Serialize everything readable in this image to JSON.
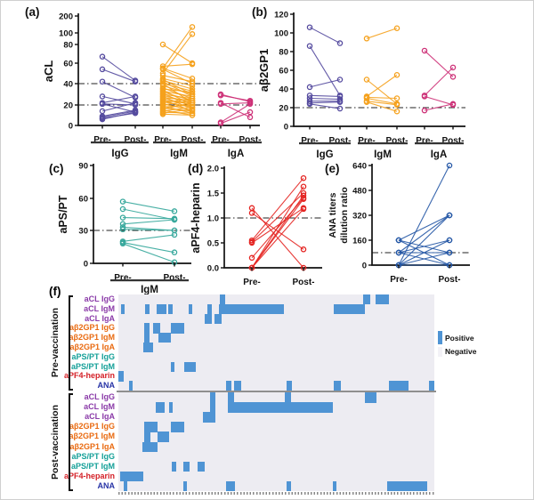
{
  "figure": {
    "type": "scientific-multipanel-figure",
    "background": "#ffffff"
  },
  "chart_data": [
    {
      "id": "a",
      "type": "paired-line",
      "panel_label": "(a)",
      "ylabel": "aCL",
      "ytick_values": [
        0,
        20,
        40,
        60,
        80,
        100,
        200
      ],
      "ytick_labels": [
        "0",
        "20",
        "40",
        "60",
        "80",
        "100",
        "200"
      ],
      "axis_break": true,
      "reference_lines": [
        20,
        40
      ],
      "x_categories": [
        "Pre-",
        "Post-"
      ],
      "groups": [
        {
          "name": "IgG",
          "color": "#544a9e",
          "pairs": [
            [
              67,
              43
            ],
            [
              54,
              42
            ],
            [
              42,
              27
            ],
            [
              28,
              21
            ],
            [
              22,
              28
            ],
            [
              21,
              20
            ],
            [
              21,
              13
            ],
            [
              14,
              22
            ],
            [
              9,
              15
            ],
            [
              8,
              14
            ],
            [
              7,
              12
            ],
            [
              6,
              13
            ]
          ]
        },
        {
          "name": "IgM",
          "color": "#f5a11c",
          "pairs": [
            [
              80,
              60
            ],
            [
              57,
              59
            ],
            [
              55,
              135
            ],
            [
              50,
              98
            ],
            [
              55,
              45
            ],
            [
              54,
              40
            ],
            [
              48,
              42
            ],
            [
              45,
              38
            ],
            [
              44,
              30
            ],
            [
              43,
              35
            ],
            [
              42,
              28
            ],
            [
              40,
              33
            ],
            [
              40,
              22
            ],
            [
              38,
              30
            ],
            [
              36,
              26
            ],
            [
              35,
              32
            ],
            [
              34,
              20
            ],
            [
              33,
              28
            ],
            [
              32,
              24
            ],
            [
              31,
              18
            ],
            [
              30,
              26
            ],
            [
              29,
              22
            ],
            [
              28,
              16
            ],
            [
              27,
              24
            ],
            [
              26,
              20
            ],
            [
              25,
              14
            ],
            [
              24,
              22
            ],
            [
              23,
              18
            ],
            [
              22,
              26
            ],
            [
              21,
              15
            ],
            [
              20,
              24
            ],
            [
              19,
              12
            ],
            [
              18,
              20
            ],
            [
              17,
              14
            ],
            [
              16,
              22
            ],
            [
              15,
              10
            ],
            [
              14,
              18
            ],
            [
              13,
              12
            ],
            [
              12,
              16
            ],
            [
              11,
              10
            ]
          ]
        },
        {
          "name": "IgA",
          "color": "#cd3077",
          "pairs": [
            [
              30,
              23
            ],
            [
              29,
              24
            ],
            [
              22,
              8
            ],
            [
              21,
              22
            ],
            [
              3,
              21
            ],
            [
              2,
              13
            ]
          ]
        }
      ]
    },
    {
      "id": "b",
      "type": "paired-line",
      "panel_label": "(b)",
      "ylabel": "aβ2GP1",
      "ytick_values": [
        0,
        20,
        40,
        60,
        80,
        100,
        120
      ],
      "ytick_labels": [
        "0",
        "20",
        "40",
        "60",
        "80",
        "100",
        "120"
      ],
      "reference_lines": [
        20
      ],
      "x_categories": [
        "Pre-",
        "Post-"
      ],
      "groups": [
        {
          "name": "IgG",
          "color": "#544a9e",
          "pairs": [
            [
              106,
              89
            ],
            [
              86,
              33
            ],
            [
              42,
              50
            ],
            [
              33,
              32
            ],
            [
              30,
              29
            ],
            [
              27,
              27
            ],
            [
              25,
              26
            ],
            [
              24,
              19
            ]
          ]
        },
        {
          "name": "IgM",
          "color": "#f5a11c",
          "pairs": [
            [
              94,
              105
            ],
            [
              50,
              24
            ],
            [
              32,
              55
            ],
            [
              31,
              30
            ],
            [
              30,
              24
            ],
            [
              27,
              23
            ],
            [
              26,
              16
            ]
          ]
        },
        {
          "name": "IgA",
          "color": "#cd3077",
          "pairs": [
            [
              81,
              53
            ],
            [
              33,
              63
            ],
            [
              32,
              23
            ],
            [
              17,
              24
            ]
          ]
        }
      ]
    },
    {
      "id": "c",
      "type": "paired-line",
      "panel_label": "(c)",
      "ylabel": "aPS/PT",
      "ytick_values": [
        0,
        30,
        60,
        90
      ],
      "ytick_labels": [
        "0",
        "30",
        "60",
        "90"
      ],
      "reference_lines": [
        30
      ],
      "x_categories": [
        "Pre-",
        "Post-"
      ],
      "groups": [
        {
          "name": "IgM",
          "color": "#35a79b",
          "pairs": [
            [
              57,
              48
            ],
            [
              50,
              40
            ],
            [
              42,
              41
            ],
            [
              36,
              40
            ],
            [
              33,
              30
            ],
            [
              31,
              30
            ],
            [
              20,
              26
            ],
            [
              19,
              10
            ],
            [
              18,
              1
            ]
          ]
        }
      ]
    },
    {
      "id": "d",
      "type": "paired-line",
      "panel_label": "(d)",
      "ylabel": "aPF4-heparin",
      "ytick_values": [
        0,
        0.5,
        1,
        1.5,
        2
      ],
      "ytick_labels": [
        "0.0",
        "0.5",
        "1.0",
        "1.5",
        "2.0"
      ],
      "reference_lines": [
        1
      ],
      "x_categories": [
        "Pre-",
        "Post-"
      ],
      "groups": [
        {
          "name": "",
          "color": "#e42320",
          "pairs": [
            [
              1.2,
              0
            ],
            [
              1.1,
              0.37
            ],
            [
              0.55,
              1.8
            ],
            [
              0.52,
              1.5
            ],
            [
              0.5,
              1.2
            ],
            [
              0.2,
              1.4
            ],
            [
              0,
              1.63
            ],
            [
              0,
              1.45
            ],
            [
              0,
              1.38
            ],
            [
              0,
              1.18
            ]
          ]
        }
      ]
    },
    {
      "id": "e",
      "type": "paired-line",
      "panel_label": "(e)",
      "ylabel_lines": [
        "ANA titers",
        "dilution ratio"
      ],
      "ytick_values": [
        0,
        160,
        320,
        480,
        640
      ],
      "ytick_labels": [
        "0",
        "160",
        "320",
        "480",
        "640"
      ],
      "reference_lines": [
        80
      ],
      "x_categories": [
        "Pre-",
        "Post-"
      ],
      "groups": [
        {
          "name": "",
          "color": "#2356a5",
          "pairs": [
            [
              0,
              640
            ],
            [
              160,
              320
            ],
            [
              80,
              320
            ],
            [
              0,
              320
            ],
            [
              160,
              80
            ],
            [
              80,
              160
            ],
            [
              0,
              160
            ],
            [
              160,
              0
            ],
            [
              80,
              80
            ],
            [
              0,
              80
            ],
            [
              80,
              0
            ],
            [
              0,
              0
            ]
          ]
        }
      ]
    },
    {
      "id": "f",
      "type": "heatmap",
      "panel_label": "(f)",
      "legend": {
        "positive": "Positive",
        "negative": "Negative"
      },
      "positive_color": "#4f94d4",
      "negative_color": "#edecf2",
      "row_labels": [
        {
          "text": "aCL IgG",
          "color": "#8a3aa8"
        },
        {
          "text": "aCL IgM",
          "color": "#8a3aa8"
        },
        {
          "text": "aCL IgA",
          "color": "#8a3aa8"
        },
        {
          "text": "aβ2GP1 IgG",
          "color": "#e96a10"
        },
        {
          "text": "aβ2GP1 IgM",
          "color": "#e96a10"
        },
        {
          "text": "aβ2GP1 IgA",
          "color": "#e96a10"
        },
        {
          "text": "aPS/PT IgG",
          "color": "#14a098"
        },
        {
          "text": "aPS/PT IgM",
          "color": "#14a098"
        },
        {
          "text": "aPF4-heparin",
          "color": "#d42027"
        },
        {
          "text": "ANA",
          "color": "#2733a6"
        }
      ],
      "blocks": [
        {
          "name": "Pre-vaccination",
          "cells": [
            [
              0,
              0.321,
              0.338
            ],
            [
              0,
              0.775,
              0.797
            ],
            [
              0,
              0.814,
              0.856
            ],
            [
              1,
              0.008,
              0.02
            ],
            [
              1,
              0.085,
              0.099
            ],
            [
              1,
              0.121,
              0.152
            ],
            [
              1,
              0.158,
              0.172
            ],
            [
              1,
              0.223,
              0.234
            ],
            [
              1,
              0.282,
              0.296
            ],
            [
              1,
              0.318,
              0.524
            ],
            [
              1,
              0.682,
              0.78
            ],
            [
              2,
              0.273,
              0.296
            ],
            [
              2,
              0.304,
              0.327
            ],
            [
              3,
              0.082,
              0.099
            ],
            [
              3,
              0.11,
              0.132
            ],
            [
              3,
              0.166,
              0.208
            ],
            [
              4,
              0.082,
              0.099
            ],
            [
              4,
              0.127,
              0.166
            ],
            [
              5,
              0.079,
              0.11
            ],
            [
              7,
              0.166,
              0.177
            ],
            [
              7,
              0.208,
              0.245
            ],
            [
              8,
              0.0,
              0.017
            ],
            [
              9,
              0.034,
              0.045
            ],
            [
              9,
              0.341,
              0.358
            ],
            [
              9,
              0.366,
              0.389
            ],
            [
              9,
              0.532,
              0.549
            ],
            [
              9,
              0.682,
              0.704
            ],
            [
              9,
              0.856,
              0.918
            ],
            [
              9,
              0.983,
              1.0
            ]
          ]
        },
        {
          "name": "Post-vaccination",
          "cells": [
            [
              0,
              0.29,
              0.307
            ],
            [
              0,
              0.346,
              0.366
            ],
            [
              0,
              0.527,
              0.546
            ],
            [
              0,
              0.78,
              0.817
            ],
            [
              1,
              0.118,
              0.146
            ],
            [
              1,
              0.161,
              0.172
            ],
            [
              1,
              0.29,
              0.307
            ],
            [
              1,
              0.346,
              0.679
            ],
            [
              2,
              0.268,
              0.307
            ],
            [
              3,
              0.082,
              0.124
            ],
            [
              3,
              0.166,
              0.208
            ],
            [
              4,
              0.082,
              0.101
            ],
            [
              4,
              0.124,
              0.161
            ],
            [
              5,
              0.076,
              0.124
            ],
            [
              7,
              0.169,
              0.183
            ],
            [
              7,
              0.206,
              0.225
            ],
            [
              7,
              0.251,
              0.273
            ],
            [
              8,
              0.006,
              0.079
            ],
            [
              9,
              0.017,
              0.028
            ],
            [
              9,
              0.206,
              0.217
            ],
            [
              9,
              0.341,
              0.369
            ],
            [
              9,
              0.532,
              0.546
            ],
            [
              9,
              0.679,
              0.69
            ],
            [
              9,
              0.851,
              0.977
            ]
          ]
        }
      ]
    }
  ]
}
